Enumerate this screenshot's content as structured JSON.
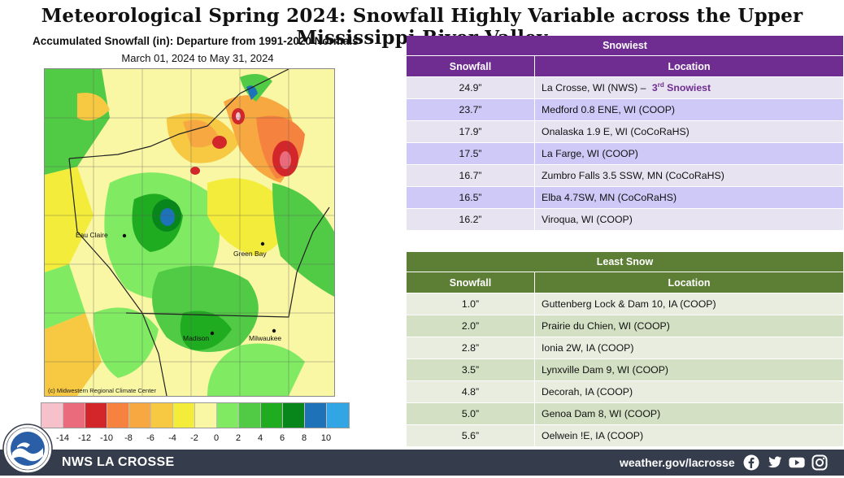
{
  "headline": "Meteorological Spring 2024:  Snowfall Highly Variable across the Upper Mississippi River Valley",
  "map": {
    "title": "Accumulated Snowfall (in): Departure from 1991-2020 Normals",
    "subtitle": "March 01, 2024 to May 31, 2024",
    "credit": "(c) Midwestern Regional Climate Center",
    "cities": [
      "Eau Claire",
      "Green Bay",
      "Madison",
      "Milwaukee"
    ]
  },
  "legend": {
    "colors": [
      "#f6c1cb",
      "#ea6c7c",
      "#d3262b",
      "#f6823f",
      "#f7a840",
      "#f7c842",
      "#f4ec3a",
      "#f9f6a4",
      "#80ea63",
      "#51cb45",
      "#20ac20",
      "#08861c",
      "#1e72b7",
      "#32a6e4"
    ],
    "labels": [
      "-14",
      "-12",
      "-10",
      "-8",
      "-6",
      "-4",
      "-2",
      "0",
      "2",
      "4",
      "6",
      "8",
      "10"
    ]
  },
  "snowiest": {
    "title": "Snowiest",
    "col_snowfall": "Snowfall",
    "col_location": "Location",
    "rows": [
      {
        "snowfall": "24.9”",
        "location": "La Crosse, WI (NWS) – ",
        "note_pre": "3",
        "note_sup": "rd",
        "note_post": " Snowiest"
      },
      {
        "snowfall": "23.7”",
        "location": "Medford 0.8 ENE, WI (COOP)"
      },
      {
        "snowfall": "17.9”",
        "location": "Onalaska 1.9 E, WI (CoCoRaHS)"
      },
      {
        "snowfall": "17.5”",
        "location": "La Farge, WI (COOP)"
      },
      {
        "snowfall": "16.7”",
        "location": "Zumbro Falls 3.5 SSW, MN (CoCoRaHS)"
      },
      {
        "snowfall": "16.5”",
        "location": "Elba 4.7SW, MN (CoCoRaHS)"
      },
      {
        "snowfall": "16.2”",
        "location": "Viroqua, WI (COOP)"
      }
    ]
  },
  "least": {
    "title": "Least Snow",
    "col_snowfall": "Snowfall",
    "col_location": "Location",
    "rows": [
      {
        "snowfall": "1.0”",
        "location": "Guttenberg Lock & Dam 10, IA (COOP)"
      },
      {
        "snowfall": "2.0”",
        "location": "Prairie du Chien, WI (COOP)"
      },
      {
        "snowfall": "2.8”",
        "location": "Ionia 2W, IA (COOP)"
      },
      {
        "snowfall": "3.5”",
        "location": "Lynxville Dam 9, WI (COOP)"
      },
      {
        "snowfall": "4.8”",
        "location": "Decorah, IA (COOP)"
      },
      {
        "snowfall": "5.0”",
        "location": "Genoa Dam 8, WI (COOP)"
      },
      {
        "snowfall": "5.6”",
        "location": "Oelwein !E, IA (COOP)"
      }
    ]
  },
  "footer": {
    "org": "NWS LA CROSSE",
    "url": "weather.gov/lacrosse",
    "icons": [
      "facebook-icon",
      "twitter-icon",
      "youtube-icon",
      "instagram-icon"
    ]
  },
  "logo_text": "NATIONAL WEATHER SERVICE LA CROSSE WI"
}
